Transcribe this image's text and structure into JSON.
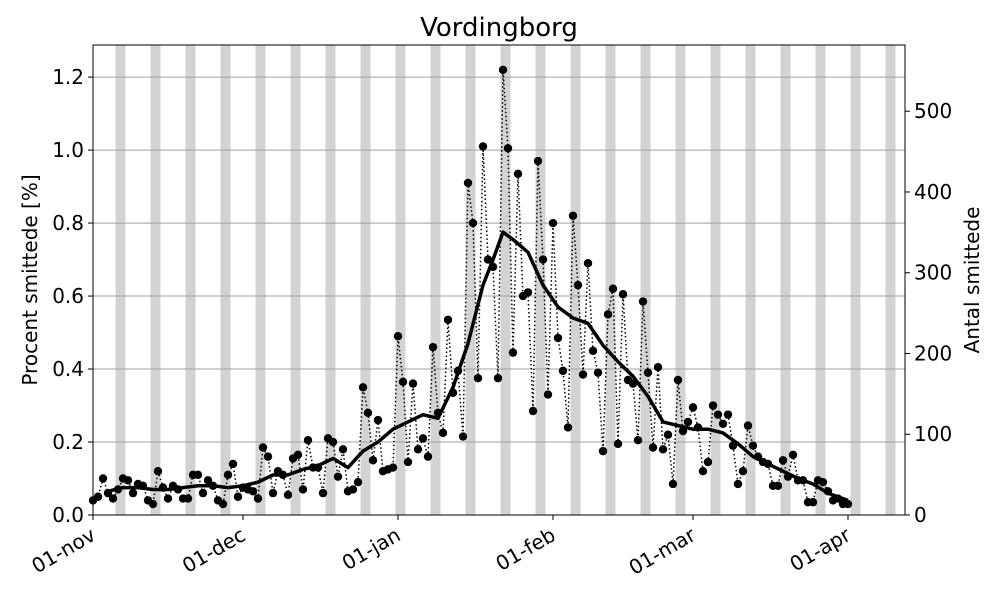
{
  "chart_data": {
    "type": "line",
    "title": "Vordingborg",
    "ylabel": "Procent smittede [%]",
    "y2label": "Antal smittede",
    "xlim": [
      0,
      162.4
    ],
    "xticks": [
      {
        "value": 0,
        "label": "01-nov"
      },
      {
        "value": 30,
        "label": "01-dec"
      },
      {
        "value": 61,
        "label": "01-jan"
      },
      {
        "value": 92,
        "label": "01-feb"
      },
      {
        "value": 120,
        "label": "01-mar"
      },
      {
        "value": 151,
        "label": "01-apr"
      }
    ],
    "ylim": [
      0,
      1.288
    ],
    "yticks": [
      {
        "value": 0,
        "label": "0.0"
      },
      0.2,
      0.4,
      0.6,
      0.8,
      {
        "value": 1,
        "label": "1.0"
      },
      1.2
    ],
    "y2lim": [
      0,
      582
    ],
    "y2ticks": [
      0,
      100,
      200,
      300,
      400,
      500
    ],
    "grid": true,
    "weekend_shading": true,
    "shade_color": "#d3d3d3",
    "series": [
      {
        "color": "#000000",
        "style": "dotted-markers",
        "x": [
          0,
          1,
          2,
          3,
          4,
          5,
          6,
          7,
          8,
          9,
          10,
          11,
          12,
          13,
          14,
          15,
          16,
          17,
          18,
          19,
          20,
          21,
          22,
          23,
          24,
          25,
          26,
          27,
          28,
          29,
          30,
          31,
          32,
          33,
          34,
          35,
          36,
          37,
          38,
          39,
          40,
          41,
          42,
          43,
          44,
          45,
          46,
          47,
          48,
          49,
          50,
          51,
          52,
          53,
          54,
          55,
          56,
          57,
          58,
          59,
          60,
          61,
          62,
          63,
          64,
          65,
          66,
          67,
          68,
          69,
          70,
          71,
          72,
          73,
          74,
          75,
          76,
          77,
          78,
          79,
          80,
          81,
          82,
          83,
          84,
          85,
          86,
          87,
          88,
          89,
          90,
          91,
          92,
          93,
          94,
          95,
          96,
          97,
          98,
          99,
          100,
          101,
          102,
          103,
          104,
          105,
          106,
          107,
          108,
          109,
          110,
          111,
          112,
          113,
          114,
          115,
          116,
          117,
          118,
          119,
          120,
          121,
          122,
          123,
          124,
          125,
          126,
          127,
          128,
          129,
          130,
          131,
          132,
          133,
          134,
          135,
          136,
          137,
          138,
          139,
          140,
          141,
          142,
          143,
          144,
          145,
          146,
          147,
          148,
          149,
          150,
          151
        ],
        "values": [
          0.04,
          0.05,
          0.1,
          0.06,
          0.045,
          0.07,
          0.1,
          0.095,
          0.06,
          0.085,
          0.08,
          0.04,
          0.03,
          0.12,
          0.075,
          0.045,
          0.08,
          0.07,
          0.045,
          0.045,
          0.11,
          0.11,
          0.06,
          0.095,
          0.08,
          0.04,
          0.03,
          0.11,
          0.14,
          0.05,
          0.075,
          0.07,
          0.065,
          0.045,
          0.185,
          0.16,
          0.06,
          0.12,
          0.11,
          0.055,
          0.155,
          0.165,
          0.07,
          0.205,
          0.13,
          0.13,
          0.06,
          0.21,
          0.2,
          0.105,
          0.18,
          0.065,
          0.07,
          0.09,
          0.35,
          0.28,
          0.15,
          0.26,
          0.12,
          0.125,
          0.13,
          0.49,
          0.365,
          0.145,
          0.36,
          0.18,
          0.21,
          0.16,
          0.46,
          0.28,
          0.225,
          0.535,
          0.335,
          0.395,
          0.215,
          0.91,
          0.8,
          0.375,
          1.01,
          0.7,
          0.68,
          0.375,
          1.22,
          1.005,
          0.445,
          0.935,
          0.6,
          0.61,
          0.285,
          0.97,
          0.7,
          0.33,
          0.8,
          0.485,
          0.395,
          0.24,
          0.82,
          0.63,
          0.385,
          0.69,
          0.45,
          0.39,
          0.175,
          0.55,
          0.62,
          0.195,
          0.605,
          0.37,
          0.36,
          0.205,
          0.585,
          0.39,
          0.185,
          0.405,
          0.18,
          0.22,
          0.085,
          0.37,
          0.23,
          0.255,
          0.295,
          0.24,
          0.12,
          0.145,
          0.3,
          0.275,
          0.25,
          0.275,
          0.19,
          0.085,
          0.12,
          0.245,
          0.19,
          0.16,
          0.145,
          0.14,
          0.08,
          0.08,
          0.15,
          0.105,
          0.165,
          0.095,
          0.095,
          0.035,
          0.035,
          0.095,
          0.09,
          0.065,
          0.04,
          0.045,
          0.03,
          0.03
        ]
      },
      {
        "color": "#000000",
        "style": "thick",
        "x": [
          3,
          6,
          9,
          12,
          15,
          18,
          21,
          24,
          27,
          30,
          33,
          36,
          39,
          42,
          45,
          48,
          51,
          54,
          57,
          60,
          63,
          66,
          69,
          72,
          75,
          78,
          80,
          82,
          84,
          87,
          90,
          93,
          96,
          99,
          102,
          105,
          108,
          111,
          114,
          117,
          120,
          123,
          126,
          129,
          132,
          135,
          138,
          141,
          144,
          147,
          150,
          151
        ],
        "values": [
          0.065,
          0.075,
          0.075,
          0.07,
          0.07,
          0.075,
          0.08,
          0.08,
          0.075,
          0.08,
          0.09,
          0.11,
          0.11,
          0.125,
          0.135,
          0.155,
          0.13,
          0.175,
          0.2,
          0.235,
          0.255,
          0.275,
          0.265,
          0.35,
          0.47,
          0.63,
          0.7,
          0.775,
          0.755,
          0.72,
          0.63,
          0.57,
          0.54,
          0.525,
          0.465,
          0.42,
          0.38,
          0.325,
          0.255,
          0.245,
          0.235,
          0.235,
          0.225,
          0.195,
          0.16,
          0.14,
          0.12,
          0.1,
          0.085,
          0.06,
          0.045,
          0.04
        ]
      }
    ]
  }
}
